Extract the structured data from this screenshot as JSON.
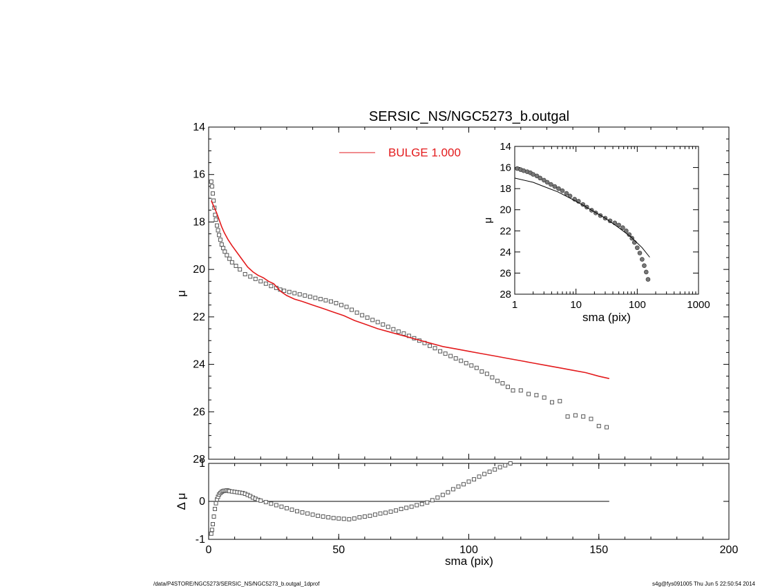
{
  "chart_data": [
    {
      "type": "scatter",
      "panel": "main-profile",
      "title": "SERSIC_NS/NGC5273_b.outgal",
      "xlabel": "",
      "ylabel": "μ",
      "xlim": [
        0,
        200
      ],
      "ylim": [
        28,
        14
      ],
      "y_reversed": true,
      "xticks": [
        "0",
        "50",
        "100",
        "150",
        "200"
      ],
      "yticks": [
        "14",
        "16",
        "18",
        "20",
        "22",
        "24",
        "26",
        "28"
      ],
      "legend": [
        {
          "label": "BULGE 1.000",
          "color": "#e31a1c"
        }
      ],
      "legend_placement": "top-center",
      "series": [
        {
          "name": "",
          "kind": "markers",
          "marker": "square",
          "color": "#555555",
          "x": [
            1.0,
            1.3,
            1.6,
            1.9,
            2.2,
            2.5,
            2.8,
            3.2,
            3.6,
            4.0,
            4.5,
            5.0,
            5.6,
            6.2,
            7.0,
            8.0,
            9.0,
            10.5,
            12.0,
            14.0,
            16.0,
            18.0,
            20.0,
            22.0,
            24.0,
            26.0,
            27.5,
            29.0,
            31.0,
            33.0,
            35.0,
            37.0,
            39.0,
            41.0,
            43.0,
            45.0,
            47.0,
            49.0,
            51.0,
            53.0,
            55.0,
            57.0,
            59.0,
            61.0,
            63.0,
            65.0,
            67.0,
            69.0,
            71.0,
            73.0,
            75.0,
            77.0,
            79.0,
            81.0,
            83.0,
            85.0,
            87.0,
            89.0,
            91.0,
            93.0,
            95.0,
            97.0,
            99.0,
            101.0,
            103.0,
            105.0,
            107.0,
            109.0,
            111.0,
            113.0,
            115.0,
            117.0,
            120.0,
            123.0,
            126.0,
            129.0,
            132.0,
            135.0,
            138.0,
            141.0,
            144.0,
            147.0,
            150.0,
            153.0
          ],
          "y": [
            16.3,
            16.5,
            16.8,
            17.1,
            17.4,
            17.7,
            17.9,
            18.15,
            18.35,
            18.55,
            18.75,
            18.95,
            19.1,
            19.25,
            19.4,
            19.55,
            19.7,
            19.85,
            20.0,
            20.2,
            20.3,
            20.4,
            20.5,
            20.6,
            20.7,
            20.78,
            20.85,
            20.9,
            20.95,
            21.0,
            21.05,
            21.1,
            21.15,
            21.2,
            21.25,
            21.3,
            21.35,
            21.42,
            21.5,
            21.58,
            21.7,
            21.82,
            21.93,
            22.03,
            22.13,
            22.22,
            22.32,
            22.42,
            22.52,
            22.62,
            22.7,
            22.8,
            22.9,
            23.0,
            23.1,
            23.22,
            23.32,
            23.45,
            23.55,
            23.65,
            23.75,
            23.85,
            23.95,
            24.05,
            24.15,
            24.3,
            24.4,
            24.55,
            24.7,
            24.8,
            24.95,
            25.1,
            25.1,
            25.25,
            25.3,
            25.4,
            25.6,
            25.55,
            26.2,
            26.15,
            26.2,
            26.3,
            26.6,
            26.65
          ]
        },
        {
          "name": "BULGE 1.000",
          "kind": "line",
          "color": "#e31a1c",
          "x": [
            1.0,
            2.0,
            3.0,
            4.0,
            5.0,
            6.0,
            7.5,
            9.0,
            11.0,
            13.0,
            15.0,
            17.0,
            19.0,
            21.0,
            23.0,
            25.0,
            26.0,
            27.0,
            28.0,
            30.0,
            33.0,
            36.0,
            40.0,
            44.0,
            48.0,
            52.0,
            56.0,
            60.0,
            65.0,
            70.0,
            75.0,
            80.0,
            85.0,
            90.0,
            95.0,
            100.0,
            105.0,
            110.0,
            115.0,
            120.0,
            125.0,
            130.0,
            135.0,
            140.0,
            145.0,
            150.0,
            154.0
          ],
          "y": [
            17.1,
            17.35,
            17.6,
            17.9,
            18.2,
            18.45,
            18.75,
            19.0,
            19.3,
            19.6,
            19.9,
            20.1,
            20.25,
            20.35,
            20.5,
            20.6,
            20.72,
            20.85,
            20.95,
            21.1,
            21.25,
            21.35,
            21.5,
            21.65,
            21.8,
            21.95,
            22.15,
            22.3,
            22.5,
            22.65,
            22.8,
            22.95,
            23.1,
            23.25,
            23.35,
            23.45,
            23.55,
            23.65,
            23.75,
            23.85,
            23.95,
            24.05,
            24.15,
            24.25,
            24.35,
            24.5,
            24.6
          ]
        }
      ]
    },
    {
      "type": "scatter",
      "panel": "residual",
      "xlabel": "sma (pix)",
      "ylabel": "Δ μ",
      "xlim": [
        0,
        200
      ],
      "ylim": [
        -1,
        1
      ],
      "xticks": [
        "0",
        "50",
        "100",
        "150",
        "200"
      ],
      "yticks": [
        "1",
        "0",
        "-1"
      ],
      "zero_line": {
        "x": [
          0,
          154
        ],
        "y": 0
      },
      "series": [
        {
          "name": "",
          "kind": "markers",
          "marker": "square",
          "color": "#555555",
          "x": [
            1.0,
            1.3,
            1.6,
            2.0,
            2.4,
            2.8,
            3.2,
            3.6,
            4.0,
            4.5,
            5.0,
            5.5,
            6.0,
            6.5,
            7.0,
            7.5,
            8.0,
            9.0,
            10.0,
            11.0,
            12.0,
            13.0,
            14.0,
            15.0,
            16.0,
            17.0,
            18.0,
            19.0,
            20.0,
            22.0,
            24.0,
            26.0,
            28.0,
            30.0,
            32.0,
            34.0,
            36.0,
            38.0,
            40.0,
            42.0,
            44.0,
            46.0,
            48.0,
            50.0,
            52.0,
            54.0,
            56.0,
            58.0,
            60.0,
            62.0,
            64.0,
            66.0,
            68.0,
            70.0,
            72.0,
            74.0,
            76.0,
            78.0,
            80.0,
            82.0,
            84.0,
            86.0,
            88.0,
            90.0,
            92.0,
            94.0,
            96.0,
            98.0,
            100.0,
            102.0,
            104.0,
            106.0,
            108.0,
            110.0,
            112.0,
            114.0,
            116.0
          ],
          "y": [
            -0.85,
            -0.75,
            -0.6,
            -0.4,
            -0.2,
            -0.05,
            0.05,
            0.12,
            0.18,
            0.22,
            0.25,
            0.27,
            0.28,
            0.28,
            0.29,
            0.28,
            0.27,
            0.26,
            0.25,
            0.24,
            0.23,
            0.22,
            0.2,
            0.17,
            0.14,
            0.1,
            0.07,
            0.04,
            0.02,
            -0.02,
            -0.06,
            -0.1,
            -0.14,
            -0.18,
            -0.22,
            -0.26,
            -0.29,
            -0.32,
            -0.35,
            -0.38,
            -0.4,
            -0.42,
            -0.44,
            -0.45,
            -0.46,
            -0.47,
            -0.45,
            -0.42,
            -0.4,
            -0.38,
            -0.35,
            -0.32,
            -0.3,
            -0.27,
            -0.24,
            -0.2,
            -0.17,
            -0.14,
            -0.1,
            -0.07,
            -0.03,
            0.03,
            0.1,
            0.17,
            0.24,
            0.32,
            0.39,
            0.45,
            0.52,
            0.58,
            0.65,
            0.72,
            0.78,
            0.84,
            0.9,
            0.95,
            1.0
          ]
        }
      ]
    },
    {
      "type": "scatter",
      "panel": "inset-log",
      "xlabel": "sma (pix)",
      "ylabel": "μ",
      "xscale": "log",
      "xlim": [
        1,
        1000
      ],
      "ylim": [
        28,
        14
      ],
      "y_reversed": true,
      "xticks": [
        "1",
        "10",
        "100",
        "1000"
      ],
      "yticks": [
        "14",
        "16",
        "18",
        "20",
        "22",
        "24",
        "26",
        "28"
      ],
      "series": [
        {
          "name": "",
          "kind": "markers",
          "marker": "circle",
          "color": "#777777",
          "x": [
            1.1,
            1.25,
            1.4,
            1.6,
            1.8,
            2.0,
            2.3,
            2.6,
            3.0,
            3.4,
            3.9,
            4.5,
            5.2,
            6.0,
            7.0,
            8.0,
            9.5,
            11.0,
            13.0,
            15.0,
            18.0,
            21.0,
            25.0,
            30.0,
            36.0,
            43.0,
            50.0,
            58.0,
            66.0,
            74.0,
            82.0,
            90.0,
            100.0,
            110.0,
            120.0,
            130.0,
            140.0,
            150.0
          ],
          "y": [
            16.1,
            16.2,
            16.3,
            16.4,
            16.5,
            16.65,
            16.8,
            17.0,
            17.2,
            17.4,
            17.6,
            17.8,
            18.0,
            18.2,
            18.45,
            18.7,
            19.0,
            19.2,
            19.5,
            19.75,
            20.05,
            20.3,
            20.55,
            20.8,
            21.05,
            21.25,
            21.45,
            21.7,
            22.0,
            22.35,
            22.7,
            23.1,
            23.6,
            24.1,
            24.7,
            25.3,
            25.9,
            26.6
          ]
        },
        {
          "name": "",
          "kind": "line",
          "color": "#000000",
          "x": [
            1.0,
            2.0,
            3.0,
            5.0,
            8.0,
            12.0,
            20.0,
            30.0,
            50.0,
            80.0,
            120.0,
            160.0
          ],
          "y": [
            17.0,
            17.4,
            17.8,
            18.3,
            18.9,
            19.45,
            20.2,
            20.8,
            21.7,
            22.6,
            23.6,
            24.5
          ]
        }
      ]
    }
  ],
  "footer": {
    "left": "/data/P4STORE/NGC5273/SERSIC_NS/NGC5273_b.outgal_1dprof",
    "right": "s4g@fys091005  Thu Jun  5 22:50:54 2014"
  }
}
